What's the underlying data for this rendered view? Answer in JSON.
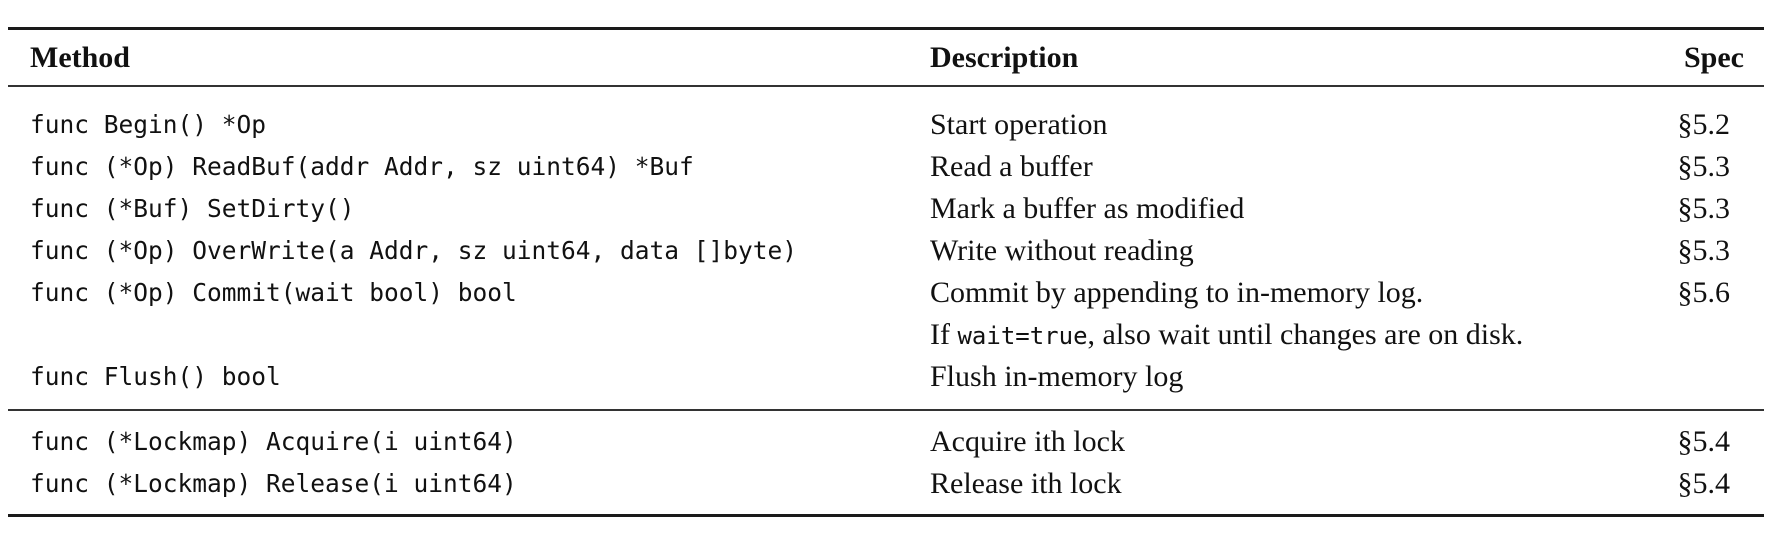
{
  "table": {
    "headers": {
      "method": "Method",
      "description": "Description",
      "spec": "Spec"
    },
    "group1": [
      {
        "method": "func Begin() *Op",
        "description": "Start operation",
        "spec": "§5.2"
      },
      {
        "method": "func (*Op) ReadBuf(addr Addr, sz uint64) *Buf",
        "description": "Read a buffer",
        "spec": "§5.3"
      },
      {
        "method": "func (*Buf) SetDirty()",
        "description": "Mark a buffer as modified",
        "spec": "§5.3"
      },
      {
        "method": "func (*Op) OverWrite(a Addr, sz uint64, data []byte)",
        "description": "Write without reading",
        "spec": "§5.3"
      },
      {
        "method": "func (*Op) Commit(wait bool) bool",
        "description": "Commit by appending to in-memory log.",
        "spec": "§5.6"
      },
      {
        "method": "",
        "description": "",
        "spec": "",
        "desc_prefix": "If ",
        "desc_code": "wait=true",
        "desc_suffix": ", also wait until changes are on disk."
      },
      {
        "method": "func Flush() bool",
        "description": "Flush in-memory log",
        "spec": ""
      }
    ],
    "group2": [
      {
        "method": "func (*Lockmap) Acquire(i uint64)",
        "description": "Acquire ith lock",
        "spec": "§5.4"
      },
      {
        "method": "func (*Lockmap) Release(i uint64)",
        "description": "Release ith lock",
        "spec": "§5.4"
      }
    ]
  }
}
